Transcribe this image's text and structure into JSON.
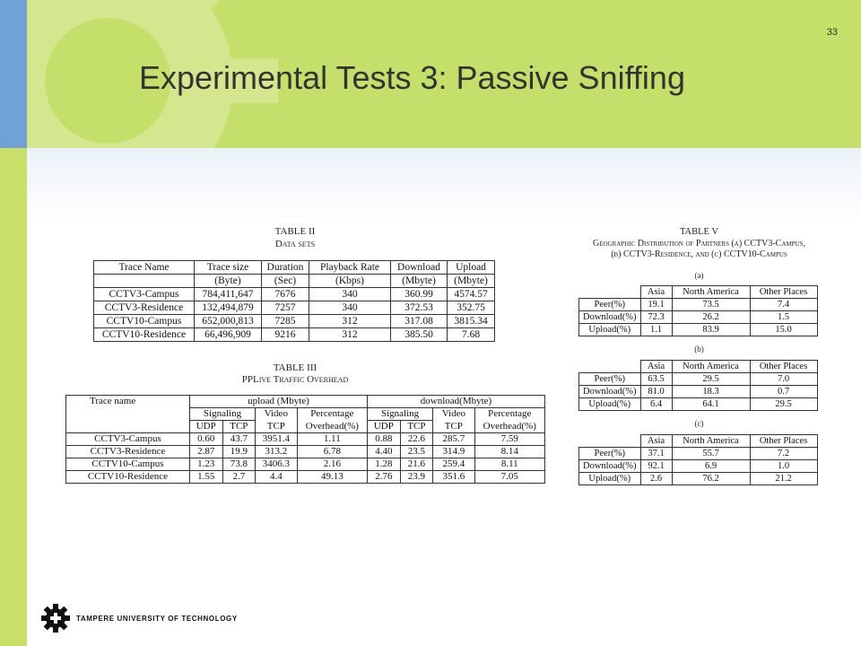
{
  "slide": {
    "title": "Experimental Tests 3: Passive Sniffing",
    "page_number": "33",
    "footer_text": "TAMPERE UNIVERSITY OF TECHNOLOGY"
  },
  "colors": {
    "header_green": "#c5e06a",
    "side_blue": "#6fa3d6",
    "gear": "#d9ea9a"
  },
  "icons": {
    "header": "gear-icon",
    "footer_logo": "tut-gear-logo-icon"
  },
  "table2": {
    "label": "TABLE II",
    "caption": "Data sets",
    "headers": [
      [
        "Trace Name",
        "Trace size",
        "Duration",
        "Playback Rate",
        "Download",
        "Upload"
      ],
      [
        "",
        "(Byte)",
        "(Sec)",
        "(Kbps)",
        "(Mbyte)",
        "(Mbyte)"
      ]
    ],
    "rows": [
      [
        "CCTV3-Campus",
        "784,411,647",
        "7676",
        "340",
        "360.99",
        "4574.57"
      ],
      [
        "CCTV3-Residence",
        "132,494,879",
        "7257",
        "340",
        "372.53",
        "352.75"
      ],
      [
        "CCTV10-Campus",
        "652,000,813",
        "7285",
        "312",
        "317.08",
        "3815.34"
      ],
      [
        "CCTV10-Residence",
        "66,496,909",
        "9216",
        "312",
        "385.50",
        "7.68"
      ]
    ]
  },
  "table3": {
    "label": "TABLE III",
    "caption": "PPLive Traffic Overhead",
    "trace_header": "Trace name",
    "group_upload": "upload (Mbyte)",
    "group_download": "download(Mbyte)",
    "sub_headers": [
      "Signaling",
      "Video",
      "Percentage"
    ],
    "sub_headers2": [
      "UDP",
      "TCP",
      "TCP",
      "Overhead(%)"
    ],
    "rows": [
      [
        "CCTV3-Campus",
        "0.60",
        "43.7",
        "3951.4",
        "1.11",
        "0.88",
        "22.6",
        "285.7",
        "7.59"
      ],
      [
        "CCTV3-Residence",
        "2.87",
        "19.9",
        "313.2",
        "6.78",
        "4.40",
        "23.5",
        "314.9",
        "8.14"
      ],
      [
        "CCTV10-Campus",
        "1.23",
        "73.8",
        "3406.3",
        "2.16",
        "1.28",
        "21.6",
        "259.4",
        "8.11"
      ],
      [
        "CCTV10-Residence",
        "1.55",
        "2.7",
        "4.4",
        "49.13",
        "2.76",
        "23.9",
        "351.6",
        "7.05"
      ]
    ]
  },
  "table5": {
    "label": "TABLE V",
    "caption_line1": "Geographic Distribution of Partners (a) CCTV3-Campus,",
    "caption_line2": "(b) CCTV3-Residence, and (c) CCTV10-Campus",
    "headers": [
      "",
      "Asia",
      "North America",
      "Other Places"
    ],
    "sub": [
      {
        "label": "(a)",
        "rows": [
          [
            "Peer(%)",
            "19.1",
            "73.5",
            "7.4"
          ],
          [
            "Download(%)",
            "72.3",
            "26.2",
            "1.5"
          ],
          [
            "Upload(%)",
            "1.1",
            "83.9",
            "15.0"
          ]
        ]
      },
      {
        "label": "(b)",
        "rows": [
          [
            "Peer(%)",
            "63.5",
            "29.5",
            "7.0"
          ],
          [
            "Download(%)",
            "81.0",
            "18.3",
            "0.7"
          ],
          [
            "Upload(%)",
            "6.4",
            "64.1",
            "29.5"
          ]
        ]
      },
      {
        "label": "(c)",
        "rows": [
          [
            "Peer(%)",
            "37.1",
            "55.7",
            "7.2"
          ],
          [
            "Download(%)",
            "92.1",
            "6.9",
            "1.0"
          ],
          [
            "Upload(%)",
            "2.6",
            "76.2",
            "21.2"
          ]
        ]
      }
    ]
  }
}
